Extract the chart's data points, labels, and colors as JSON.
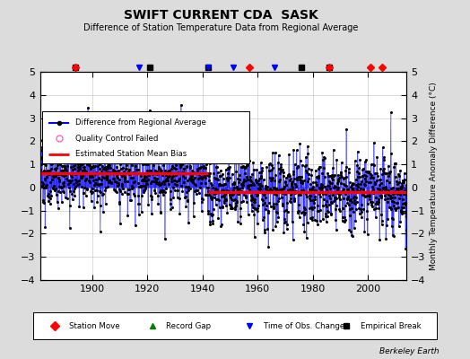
{
  "title": "SWIFT CURRENT CDA  SASK",
  "subtitle": "Difference of Station Temperature Data from Regional Average",
  "ylabel": "Monthly Temperature Anomaly Difference (°C)",
  "xlabel_credit": "Berkeley Earth",
  "xlim": [
    1881,
    2014
  ],
  "ylim": [
    -4,
    5
  ],
  "yticks": [
    -4,
    -3,
    -2,
    -1,
    0,
    1,
    2,
    3,
    4,
    5
  ],
  "xticks": [
    1900,
    1920,
    1940,
    1960,
    1980,
    2000
  ],
  "data_start_year": 1881,
  "data_end_year": 2014,
  "num_months": 1596,
  "random_seed": 42,
  "line_color": "#0000FF",
  "dot_color": "#000000",
  "bias_color": "#FF0000",
  "background_color": "#DCDCDC",
  "plot_bg_color": "#FFFFFF",
  "station_move_years": [
    1894,
    1957,
    1986,
    2001,
    2005
  ],
  "obs_change_years": [
    1917,
    1942,
    1951,
    1966
  ],
  "empirical_break_years": [
    1894,
    1921,
    1942,
    1976,
    1986
  ],
  "record_gap_years": [],
  "bias_segments": [
    {
      "start": 1881,
      "end": 1942,
      "value": 0.6
    },
    {
      "start": 1942,
      "end": 2014,
      "value": -0.2
    }
  ]
}
